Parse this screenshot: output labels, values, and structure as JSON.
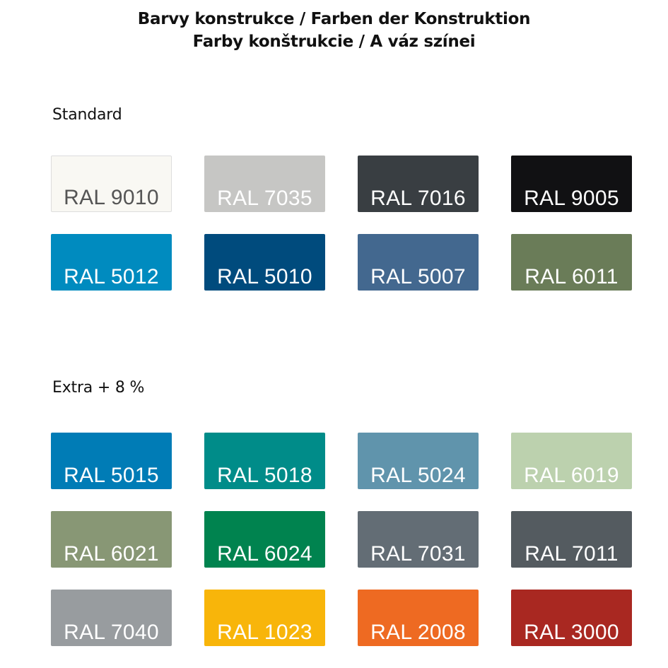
{
  "header": {
    "title_line1": "Barvy konstrukce / Farben der Konstruktion",
    "title_line2": "Farby konštrukcie / A váz színei"
  },
  "sections": [
    {
      "heading": "Standard",
      "swatches": [
        {
          "label": "RAL 9010",
          "color": "#F9F8F3",
          "text_color": "#555555",
          "border": "#DDDDDD"
        },
        {
          "label": "RAL 7035",
          "color": "#C6C6C4",
          "text_color": "#FFFFFF"
        },
        {
          "label": "RAL 7016",
          "color": "#393E42",
          "text_color": "#FFFFFF"
        },
        {
          "label": "RAL 9005",
          "color": "#111113",
          "text_color": "#FFFFFF"
        },
        {
          "label": "RAL 5012",
          "color": "#008BBF",
          "text_color": "#FFFFFF"
        },
        {
          "label": "RAL 5010",
          "color": "#004B7D",
          "text_color": "#FFFFFF"
        },
        {
          "label": "RAL 5007",
          "color": "#43688F",
          "text_color": "#FFFFFF"
        },
        {
          "label": "RAL 6011",
          "color": "#6A7C58",
          "text_color": "#FFFFFF"
        }
      ]
    },
    {
      "heading": "Extra + 8 %",
      "swatches": [
        {
          "label": "RAL 5015",
          "color": "#007CB6",
          "text_color": "#FFFFFF"
        },
        {
          "label": "RAL 5018",
          "color": "#008C89",
          "text_color": "#FFFFFF"
        },
        {
          "label": "RAL 5024",
          "color": "#6094AC",
          "text_color": "#FFFFFF"
        },
        {
          "label": "RAL 6019",
          "color": "#BCD1AE",
          "text_color": "#FFFFFF"
        },
        {
          "label": "RAL 6021",
          "color": "#889775",
          "text_color": "#FFFFFF"
        },
        {
          "label": "RAL 6024",
          "color": "#00834F",
          "text_color": "#FFFFFF"
        },
        {
          "label": "RAL 7031",
          "color": "#636D75",
          "text_color": "#FFFFFF"
        },
        {
          "label": "RAL 7011",
          "color": "#545B60",
          "text_color": "#FFFFFF"
        },
        {
          "label": "RAL 7040",
          "color": "#989C9F",
          "text_color": "#FFFFFF"
        },
        {
          "label": "RAL 1023",
          "color": "#F8B50A",
          "text_color": "#FFFFFF"
        },
        {
          "label": "RAL 2008",
          "color": "#EE6A22",
          "text_color": "#FFFFFF"
        },
        {
          "label": "RAL 3000",
          "color": "#A92821",
          "text_color": "#FFFFFF"
        }
      ]
    }
  ]
}
